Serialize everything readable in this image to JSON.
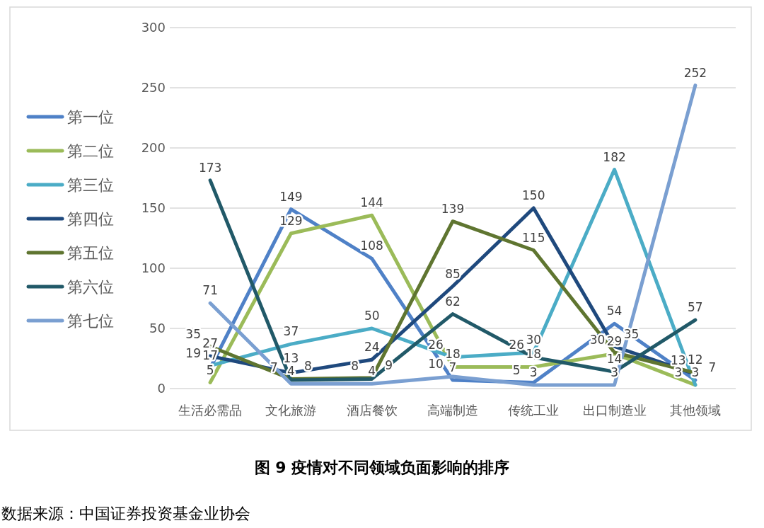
{
  "chart_data": {
    "type": "line",
    "title": "图 9 疫情对不同领域负面影响的排序",
    "annotations": [
      "数据来源：中国证券投资基金业协会"
    ],
    "categories": [
      "生活必需品",
      "文化旅游",
      "酒店餐饮",
      "高端制造",
      "传统工业",
      "出口制造业",
      "其他领域"
    ],
    "series": [
      {
        "name": "第一位",
        "color": "#4f81c7",
        "values": [
          17,
          149,
          108,
          7,
          5,
          54,
          7
        ]
      },
      {
        "name": "第二位",
        "color": "#9bbb59",
        "values": [
          5,
          129,
          144,
          18,
          18,
          29,
          3
        ]
      },
      {
        "name": "第三位",
        "color": "#4bacc6",
        "values": [
          19,
          37,
          50,
          26,
          30,
          182,
          3
        ]
      },
      {
        "name": "第四位",
        "color": "#1f497d",
        "values": [
          27,
          13,
          24,
          85,
          150,
          35,
          12
        ]
      },
      {
        "name": "第五位",
        "color": "#5f7530",
        "values": [
          35,
          8,
          9,
          139,
          115,
          30,
          13
        ]
      },
      {
        "name": "第六位",
        "color": "#215968",
        "values": [
          173,
          7,
          8,
          62,
          26,
          14,
          57
        ]
      },
      {
        "name": "第七位",
        "color": "#7a9fd1",
        "values": [
          71,
          4,
          4,
          10,
          3,
          3,
          252
        ]
      }
    ],
    "ylim": [
      0,
      300
    ],
    "yticks": [
      0,
      50,
      100,
      150,
      200,
      250,
      300
    ],
    "grid": "y",
    "legend": "left",
    "data_labels": true
  }
}
